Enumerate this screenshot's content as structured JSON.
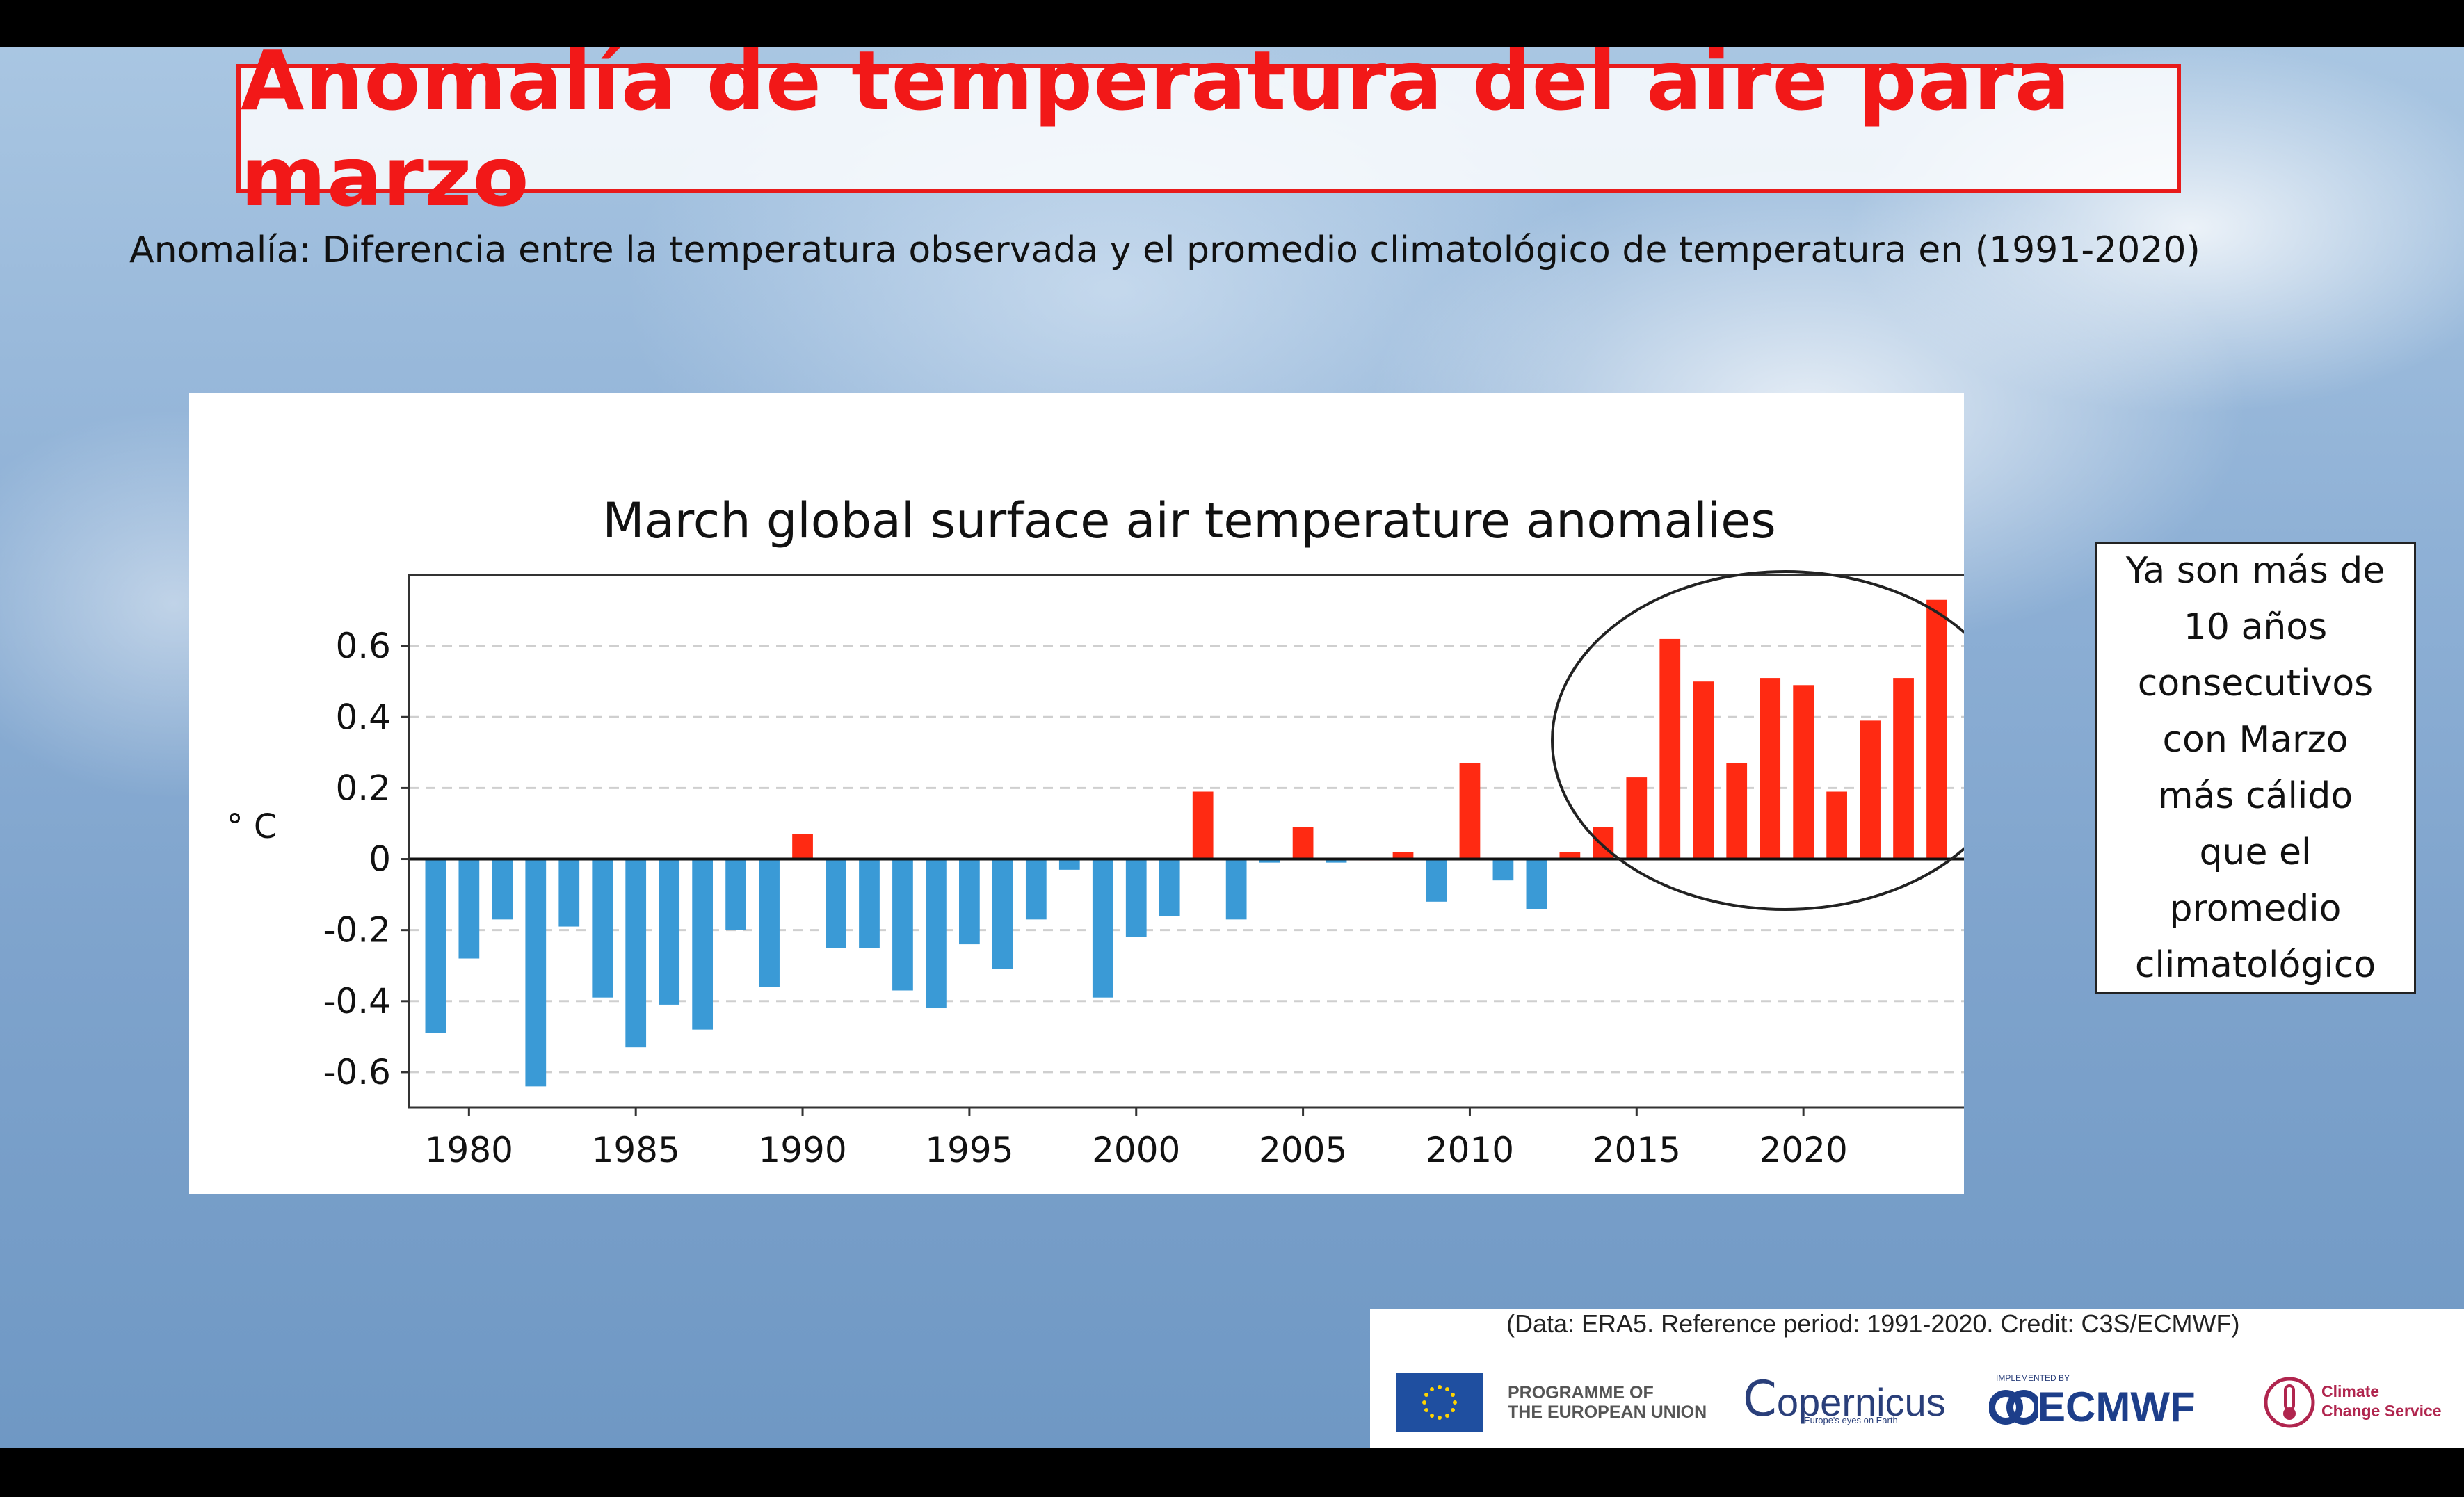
{
  "slide": {
    "title": "Anomalía de temperatura del aire para marzo",
    "subtitle": "Anomalía: Diferencia entre la temperatura observada y el promedio climatológico de temperatura en (1991-2020)",
    "note_lines": [
      "Ya son más de",
      "10 años",
      "consecutivos",
      "con Marzo",
      "más cálido",
      "que el",
      "promedio",
      "climatológico"
    ],
    "credit": "(Data: ERA5.  Reference period: 1991-2020.  Credit: C3S/ECMWF)",
    "logos": {
      "eu": [
        "PROGRAMME OF",
        "THE EUROPEAN UNION"
      ],
      "copernicus": "opernicus",
      "copernicus_tag": "Europe's eyes on Earth",
      "ecmwf_small": "IMPLEMENTED BY",
      "ecmwf": "ECMWF",
      "c3s": [
        "Climate",
        "Change Service"
      ]
    },
    "colors": {
      "title_red": "#f21818",
      "positive_bar": "#ff2a12",
      "negative_bar": "#3a9ad6"
    }
  },
  "chart_data": {
    "type": "bar",
    "title": "March global surface air temperature anomalies",
    "ylabel": "° C",
    "xlabel": "",
    "ylim": [
      -0.7,
      0.8
    ],
    "xlim": [
      1978.2,
      2025
    ],
    "yticks": [
      0.6,
      0.4,
      0.2,
      0,
      -0.2,
      -0.4,
      -0.6
    ],
    "ytick_labels": [
      "0.6",
      "0.4",
      "0.2",
      "0",
      "-0.2",
      "-0.4",
      "-0.6"
    ],
    "xticks": [
      1980,
      1985,
      1990,
      1995,
      2000,
      2005,
      2010,
      2015,
      2020
    ],
    "xtick_labels": [
      "1980",
      "1985",
      "1990",
      "1995",
      "2000",
      "2005",
      "2010",
      "2015",
      "2020"
    ],
    "grid": "horizontal dashed",
    "highlight": "ellipse around 2014-2024",
    "x": [
      1979,
      1980,
      1981,
      1982,
      1983,
      1984,
      1985,
      1986,
      1987,
      1988,
      1989,
      1990,
      1991,
      1992,
      1993,
      1994,
      1995,
      1996,
      1997,
      1998,
      1999,
      2000,
      2001,
      2002,
      2003,
      2004,
      2005,
      2006,
      2007,
      2008,
      2009,
      2010,
      2011,
      2012,
      2013,
      2014,
      2015,
      2016,
      2017,
      2018,
      2019,
      2020,
      2021,
      2022,
      2023,
      2024
    ],
    "values": [
      -0.49,
      -0.28,
      -0.17,
      -0.64,
      -0.19,
      -0.39,
      -0.53,
      -0.41,
      -0.48,
      -0.2,
      -0.36,
      0.07,
      -0.25,
      -0.25,
      -0.37,
      -0.42,
      -0.24,
      -0.31,
      -0.17,
      -0.03,
      -0.39,
      -0.22,
      -0.16,
      0.19,
      -0.17,
      -0.01,
      0.09,
      -0.01,
      0.0,
      0.02,
      -0.12,
      0.27,
      -0.06,
      -0.14,
      0.02,
      0.09,
      0.23,
      0.62,
      0.5,
      0.27,
      0.51,
      0.49,
      0.19,
      0.39,
      0.51,
      0.73
    ]
  }
}
